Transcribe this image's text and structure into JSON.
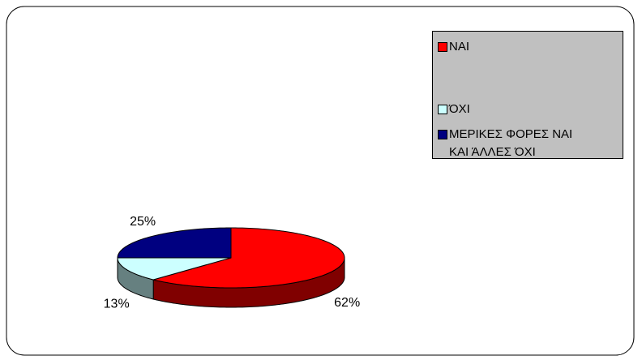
{
  "chart_data": {
    "type": "pie3d",
    "categories": [
      "ΝΑΙ",
      "ΌΧΙ",
      "ΜΕΡΙΚΕΣ ΦΟΡΕΣ ΝΑΙ ΚΑΙ ΆΛΛΕΣ ΌΧΙ"
    ],
    "values": [
      62,
      13,
      25
    ],
    "value_labels": [
      "62%",
      "13%",
      "25%"
    ],
    "colors": [
      "#ff0000",
      "#ccffff",
      "#000080"
    ],
    "side_colors": [
      "#800000",
      "#668080",
      "#000040"
    ],
    "legend": "top-right"
  }
}
